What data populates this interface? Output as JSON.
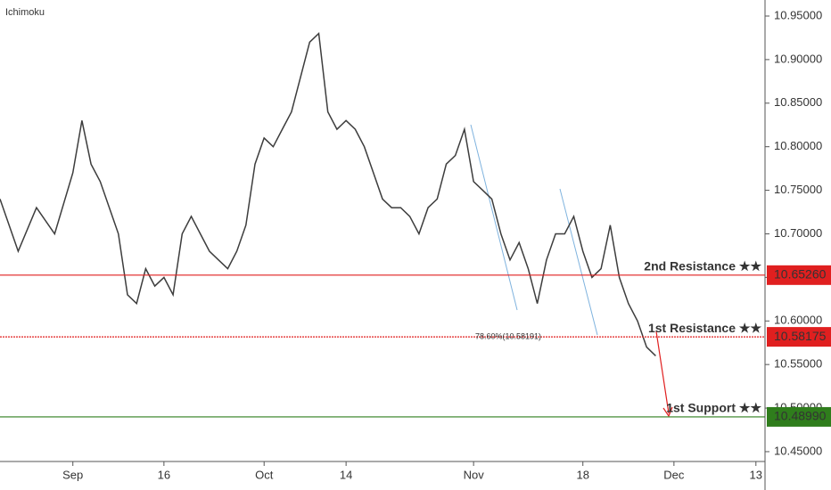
{
  "chart_data": {
    "type": "line",
    "indicator": "Ichimoku",
    "color": "#3d3d3d",
    "x": [
      -8,
      -6,
      -4,
      -2,
      0,
      1,
      2,
      3,
      4,
      5,
      6,
      7,
      8,
      9,
      10,
      11,
      12,
      13,
      14,
      15,
      16,
      17,
      18,
      19,
      20,
      21,
      22,
      23,
      24,
      25,
      26,
      27,
      28,
      29,
      30,
      31,
      32,
      33,
      34,
      35,
      36,
      37,
      38,
      39,
      40,
      41,
      42,
      43,
      44,
      45,
      46,
      47,
      48,
      49,
      50,
      51,
      52,
      53,
      54,
      55,
      56,
      57,
      58,
      59,
      60,
      61,
      62,
      63,
      64
    ],
    "values": [
      10.74,
      10.68,
      10.73,
      10.7,
      10.77,
      10.83,
      10.78,
      10.76,
      10.73,
      10.7,
      10.63,
      10.62,
      10.66,
      10.64,
      10.65,
      10.63,
      10.7,
      10.72,
      10.7,
      10.68,
      10.67,
      10.66,
      10.68,
      10.71,
      10.78,
      10.81,
      10.8,
      10.82,
      10.84,
      10.88,
      10.92,
      10.93,
      10.84,
      10.82,
      10.83,
      10.82,
      10.8,
      10.77,
      10.74,
      10.73,
      10.73,
      10.72,
      10.7,
      10.73,
      10.74,
      10.78,
      10.79,
      10.82,
      10.76,
      10.75,
      10.74,
      10.7,
      10.67,
      10.69,
      10.66,
      10.62,
      10.67,
      10.7,
      10.7,
      10.72,
      10.68,
      10.65,
      10.66,
      10.71,
      10.65,
      10.62,
      10.6,
      10.57,
      10.56
    ],
    "xlim": [
      -8,
      76
    ],
    "xticks": [
      {
        "value": 0,
        "label": "Sep"
      },
      {
        "value": 10,
        "label": "16"
      },
      {
        "value": 21,
        "label": "Oct"
      },
      {
        "value": 30,
        "label": "14"
      },
      {
        "value": 44,
        "label": "Nov"
      },
      {
        "value": 56,
        "label": "18"
      },
      {
        "value": 66,
        "label": "Dec"
      },
      {
        "value": 75,
        "label": "13"
      }
    ],
    "ylim": [
      10.4387,
      10.9684
    ],
    "yticks": [
      {
        "value": 10.45,
        "label": "10.45000"
      },
      {
        "value": 10.5,
        "label": "10.50000"
      },
      {
        "value": 10.55,
        "label": "10.55000"
      },
      {
        "value": 10.6,
        "label": "10.60000"
      },
      {
        "value": 10.65,
        "label": "10.65000"
      },
      {
        "value": 10.7,
        "label": "10.70000"
      },
      {
        "value": 10.75,
        "label": "10.75000"
      },
      {
        "value": 10.8,
        "label": "10.80000"
      },
      {
        "value": 10.85,
        "label": "10.85000"
      },
      {
        "value": 10.9,
        "label": "10.90000"
      },
      {
        "value": 10.95,
        "label": "10.95000"
      }
    ],
    "levels": [
      {
        "label": "2nd Resistance ★★",
        "value": 10.6526,
        "value_label": "10.65260",
        "color": "#e01f1f"
      },
      {
        "label": "1st Resistance ★★",
        "value": 10.58175,
        "value_label": "10.58175",
        "color": "#e01f1f"
      },
      {
        "label": "1st Support ★★",
        "value": 10.4899,
        "value_label": "10.48990",
        "color": "#2f7d1c"
      }
    ],
    "annotation": "78.60%(10.58191)"
  }
}
